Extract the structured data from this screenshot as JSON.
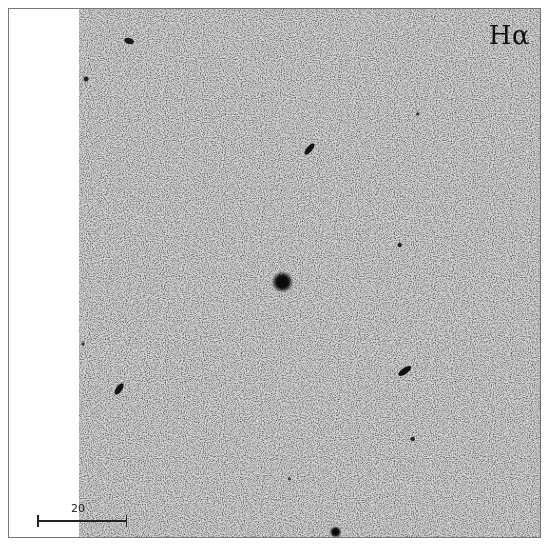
{
  "image": {
    "filter_label": "Hα",
    "scale_bar_label": "20"
  },
  "colors": {
    "background_field": "#d6d6d6",
    "source": "#0b0b0b",
    "frame": "#777777"
  }
}
